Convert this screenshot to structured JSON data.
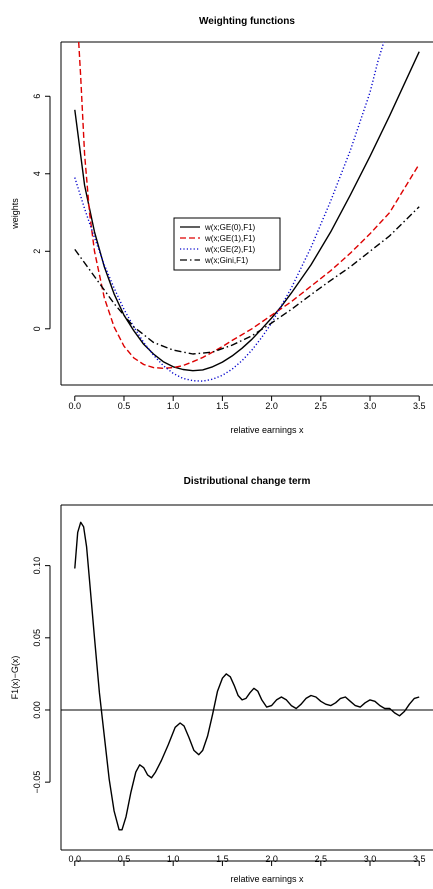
{
  "chart_data": [
    {
      "type": "line",
      "title": "Weighting functions",
      "xlabel": "relative earnings x",
      "ylabel": "weights",
      "xlim": [
        -0.14,
        3.64
      ],
      "ylim": [
        -1.45,
        7.4
      ],
      "xticks": [
        "0.0",
        "0.5",
        "1.0",
        "1.5",
        "2.0",
        "2.5",
        "3.0",
        "3.5"
      ],
      "xtick_values": [
        0,
        0.5,
        1,
        1.5,
        2,
        2.5,
        3,
        3.5
      ],
      "yticks": [
        "0",
        "2",
        "4",
        "6"
      ],
      "ytick_values": [
        0,
        2,
        4,
        6
      ],
      "legend_position": "center",
      "series": [
        {
          "name": "w(x;GE(0),F1)",
          "color": "#000000",
          "dash": "solid",
          "points": [
            [
              0,
              5.65
            ],
            [
              0.1,
              3.7
            ],
            [
              0.2,
              2.5
            ],
            [
              0.3,
              1.6
            ],
            [
              0.4,
              0.9
            ],
            [
              0.5,
              0.35
            ],
            [
              0.6,
              -0.05
            ],
            [
              0.7,
              -0.4
            ],
            [
              0.8,
              -0.65
            ],
            [
              0.9,
              -0.85
            ],
            [
              1.0,
              -0.98
            ],
            [
              1.1,
              -1.05
            ],
            [
              1.2,
              -1.08
            ],
            [
              1.3,
              -1.06
            ],
            [
              1.4,
              -0.98
            ],
            [
              1.5,
              -0.86
            ],
            [
              1.6,
              -0.7
            ],
            [
              1.7,
              -0.5
            ],
            [
              1.8,
              -0.27
            ],
            [
              1.9,
              0.0
            ],
            [
              2.0,
              0.28
            ],
            [
              2.1,
              0.58
            ],
            [
              2.2,
              0.92
            ],
            [
              2.4,
              1.65
            ],
            [
              2.6,
              2.5
            ],
            [
              2.8,
              3.45
            ],
            [
              3.0,
              4.45
            ],
            [
              3.2,
              5.5
            ],
            [
              3.5,
              7.15
            ]
          ]
        },
        {
          "name": "w(x;GE(1),F1)",
          "color": "#dd0000",
          "dash": "dashed",
          "points": [
            [
              0.04,
              7.4
            ],
            [
              0.06,
              6.5
            ],
            [
              0.1,
              4.5
            ],
            [
              0.15,
              3.0
            ],
            [
              0.2,
              2.0
            ],
            [
              0.3,
              0.8
            ],
            [
              0.4,
              0.05
            ],
            [
              0.5,
              -0.45
            ],
            [
              0.6,
              -0.75
            ],
            [
              0.7,
              -0.92
            ],
            [
              0.8,
              -1.0
            ],
            [
              0.9,
              -1.02
            ],
            [
              1.0,
              -1.0
            ],
            [
              1.1,
              -0.95
            ],
            [
              1.2,
              -0.85
            ],
            [
              1.3,
              -0.74
            ],
            [
              1.4,
              -0.6
            ],
            [
              1.5,
              -0.46
            ],
            [
              1.6,
              -0.3
            ],
            [
              1.7,
              -0.15
            ],
            [
              1.8,
              0.0
            ],
            [
              2.0,
              0.35
            ],
            [
              2.2,
              0.7
            ],
            [
              2.4,
              1.1
            ],
            [
              2.6,
              1.5
            ],
            [
              2.8,
              1.95
            ],
            [
              3.0,
              2.45
            ],
            [
              3.2,
              3.0
            ],
            [
              3.5,
              4.25
            ]
          ]
        },
        {
          "name": "w(x;GE(2),F1)",
          "color": "#0000cc",
          "dash": "dotted",
          "points": [
            [
              0,
              3.9
            ],
            [
              0.1,
              3.1
            ],
            [
              0.2,
              2.35
            ],
            [
              0.3,
              1.65
            ],
            [
              0.4,
              1.05
            ],
            [
              0.5,
              0.5
            ],
            [
              0.6,
              0.05
            ],
            [
              0.7,
              -0.35
            ],
            [
              0.8,
              -0.68
            ],
            [
              0.9,
              -0.95
            ],
            [
              1.0,
              -1.15
            ],
            [
              1.1,
              -1.28
            ],
            [
              1.2,
              -1.34
            ],
            [
              1.3,
              -1.35
            ],
            [
              1.4,
              -1.3
            ],
            [
              1.5,
              -1.2
            ],
            [
              1.6,
              -1.04
            ],
            [
              1.7,
              -0.82
            ],
            [
              1.8,
              -0.55
            ],
            [
              1.9,
              -0.22
            ],
            [
              2.0,
              0.15
            ],
            [
              2.2,
              1.05
            ],
            [
              2.4,
              2.1
            ],
            [
              2.6,
              3.3
            ],
            [
              2.8,
              4.6
            ],
            [
              3.0,
              6.1
            ],
            [
              3.08,
              6.9
            ],
            [
              3.14,
              7.4
            ]
          ]
        },
        {
          "name": "w(x;Gini,F1)",
          "color": "#000000",
          "dash": "dashdot",
          "points": [
            [
              0,
              2.05
            ],
            [
              0.2,
              1.35
            ],
            [
              0.4,
              0.65
            ],
            [
              0.6,
              0.05
            ],
            [
              0.8,
              -0.35
            ],
            [
              1.0,
              -0.55
            ],
            [
              1.2,
              -0.65
            ],
            [
              1.4,
              -0.6
            ],
            [
              1.6,
              -0.42
            ],
            [
              1.8,
              -0.18
            ],
            [
              2.0,
              0.15
            ],
            [
              2.2,
              0.5
            ],
            [
              2.4,
              0.88
            ],
            [
              2.6,
              1.25
            ],
            [
              2.8,
              1.6
            ],
            [
              3.0,
              2.0
            ],
            [
              3.2,
              2.4
            ],
            [
              3.5,
              3.15
            ]
          ]
        }
      ]
    },
    {
      "type": "line",
      "title": "Distributional change term",
      "xlabel": "relative earnings x",
      "ylabel": "F1(x)−G(x)",
      "xlim": [
        -0.14,
        3.64
      ],
      "ylim": [
        -0.097,
        0.142
      ],
      "xticks": [
        "0.0",
        "0.5",
        "1.0",
        "1.5",
        "2.0",
        "2.5",
        "3.0",
        "3.5"
      ],
      "xtick_values": [
        0,
        0.5,
        1,
        1.5,
        2,
        2.5,
        3,
        3.5
      ],
      "yticks": [
        "−0.05",
        "0.00",
        "0.05",
        "0.10"
      ],
      "ytick_values": [
        -0.05,
        0,
        0.05,
        0.1
      ],
      "hline": 0,
      "series": [
        {
          "color": "#000000",
          "dash": "solid",
          "points": [
            [
              0,
              0.098
            ],
            [
              0.03,
              0.123
            ],
            [
              0.06,
              0.13
            ],
            [
              0.09,
              0.127
            ],
            [
              0.12,
              0.113
            ],
            [
              0.15,
              0.09
            ],
            [
              0.2,
              0.05
            ],
            [
              0.25,
              0.012
            ],
            [
              0.3,
              -0.018
            ],
            [
              0.35,
              -0.048
            ],
            [
              0.4,
              -0.07
            ],
            [
              0.45,
              -0.083
            ],
            [
              0.48,
              -0.083
            ],
            [
              0.52,
              -0.074
            ],
            [
              0.57,
              -0.057
            ],
            [
              0.62,
              -0.043
            ],
            [
              0.66,
              -0.038
            ],
            [
              0.7,
              -0.04
            ],
            [
              0.74,
              -0.045
            ],
            [
              0.78,
              -0.047
            ],
            [
              0.82,
              -0.043
            ],
            [
              0.88,
              -0.035
            ],
            [
              0.95,
              -0.024
            ],
            [
              1.02,
              -0.012
            ],
            [
              1.07,
              -0.009
            ],
            [
              1.11,
              -0.011
            ],
            [
              1.16,
              -0.019
            ],
            [
              1.21,
              -0.028
            ],
            [
              1.26,
              -0.031
            ],
            [
              1.3,
              -0.028
            ],
            [
              1.35,
              -0.018
            ],
            [
              1.4,
              -0.003
            ],
            [
              1.45,
              0.013
            ],
            [
              1.5,
              0.022
            ],
            [
              1.54,
              0.025
            ],
            [
              1.58,
              0.023
            ],
            [
              1.62,
              0.017
            ],
            [
              1.66,
              0.01
            ],
            [
              1.7,
              0.007
            ],
            [
              1.74,
              0.008
            ],
            [
              1.78,
              0.012
            ],
            [
              1.82,
              0.015
            ],
            [
              1.86,
              0.013
            ],
            [
              1.9,
              0.007
            ],
            [
              1.95,
              0.002
            ],
            [
              2.0,
              0.003
            ],
            [
              2.05,
              0.007
            ],
            [
              2.1,
              0.009
            ],
            [
              2.15,
              0.007
            ],
            [
              2.2,
              0.003
            ],
            [
              2.25,
              0.001
            ],
            [
              2.3,
              0.004
            ],
            [
              2.35,
              0.008
            ],
            [
              2.4,
              0.01
            ],
            [
              2.45,
              0.009
            ],
            [
              2.5,
              0.006
            ],
            [
              2.55,
              0.004
            ],
            [
              2.6,
              0.003
            ],
            [
              2.65,
              0.005
            ],
            [
              2.7,
              0.008
            ],
            [
              2.75,
              0.009
            ],
            [
              2.8,
              0.006
            ],
            [
              2.85,
              0.003
            ],
            [
              2.9,
              0.002
            ],
            [
              2.95,
              0.005
            ],
            [
              3.0,
              0.007
            ],
            [
              3.05,
              0.006
            ],
            [
              3.1,
              0.003
            ],
            [
              3.15,
              0.001
            ],
            [
              3.2,
              0.001
            ],
            [
              3.25,
              -0.002
            ],
            [
              3.3,
              -0.004
            ],
            [
              3.35,
              -0.001
            ],
            [
              3.4,
              0.004
            ],
            [
              3.45,
              0.008
            ],
            [
              3.5,
              0.009
            ]
          ]
        }
      ]
    }
  ]
}
